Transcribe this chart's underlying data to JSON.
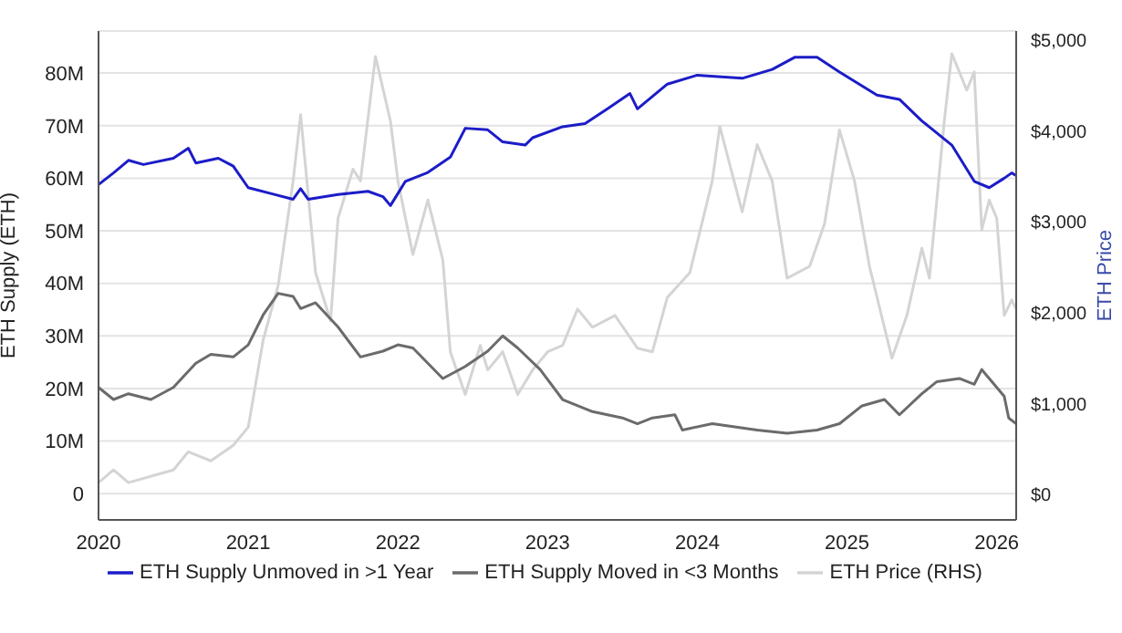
{
  "chart_data": {
    "type": "line",
    "xlabel": null,
    "ylabel": "ETH Supply (ETH)",
    "y2label": "ETH Price",
    "xlim": [
      2020,
      2026.13
    ],
    "xticks": [
      2020,
      2021,
      2022,
      2023,
      2024,
      2025,
      2026
    ],
    "ylim": [
      -5000000,
      88000000
    ],
    "yticks": [
      {
        "value": 0,
        "label": "0"
      },
      {
        "value": 10000000,
        "label": "10M"
      },
      {
        "value": 20000000,
        "label": "20M"
      },
      {
        "value": 30000000,
        "label": "30M"
      },
      {
        "value": 40000000,
        "label": "40M"
      },
      {
        "value": 50000000,
        "label": "50M"
      },
      {
        "value": 60000000,
        "label": "60M"
      },
      {
        "value": 70000000,
        "label": "70M"
      },
      {
        "value": 80000000,
        "label": "80M"
      }
    ],
    "y2lim": [
      -280,
      5100
    ],
    "y2ticks": [
      {
        "value": 0,
        "label": "$0"
      },
      {
        "value": 1000,
        "label": "$1,000"
      },
      {
        "value": 2000,
        "label": "$2,000"
      },
      {
        "value": 3000,
        "label": "$3,000"
      },
      {
        "value": 4000,
        "label": "$4,000"
      },
      {
        "value": 5000,
        "label": "$5,000"
      }
    ],
    "grid": "y",
    "legend": "bottom",
    "series": [
      {
        "name": "ETH Supply Unmoved in >1 Year",
        "color": "#1c1cc8",
        "x": [
          2020.0,
          2020.1,
          2020.2,
          2020.3,
          2020.5,
          2020.6,
          2020.65,
          2020.8,
          2020.9,
          2021.0,
          2021.15,
          2021.3,
          2021.35,
          2021.4,
          2021.6,
          2021.8,
          2021.9,
          2021.95,
          2022.0,
          2022.05,
          2022.2,
          2022.35,
          2022.45,
          2022.6,
          2022.7,
          2022.85,
          2022.9,
          2023.1,
          2023.25,
          2023.4,
          2023.55,
          2023.6,
          2023.8,
          2024.0,
          2024.3,
          2024.5,
          2024.65,
          2024.8,
          2024.95,
          2025.2,
          2025.35,
          2025.5,
          2025.7,
          2025.85,
          2025.95,
          2026.05,
          2026.1,
          2026.13
        ],
        "values": [
          58800000,
          61000000,
          63400000,
          62600000,
          63800000,
          65700000,
          62900000,
          63800000,
          62300000,
          58200000,
          57100000,
          56000000,
          58000000,
          56000000,
          56900000,
          57500000,
          56500000,
          54800000,
          57100000,
          59400000,
          61100000,
          64000000,
          69500000,
          69200000,
          66900000,
          66300000,
          67700000,
          69800000,
          70400000,
          73200000,
          76100000,
          73200000,
          77900000,
          79600000,
          79000000,
          80700000,
          83000000,
          83000000,
          80200000,
          75800000,
          75000000,
          70900000,
          66300000,
          59400000,
          58200000,
          60000000,
          61000000,
          60500000
        ]
      },
      {
        "name": "ETH Supply Moved in <3 Months",
        "color": "#6b6b6b",
        "x": [
          2020.0,
          2020.1,
          2020.2,
          2020.35,
          2020.5,
          2020.65,
          2020.75,
          2020.9,
          2021.0,
          2021.1,
          2021.2,
          2021.3,
          2021.35,
          2021.45,
          2021.6,
          2021.75,
          2021.9,
          2022.0,
          2022.1,
          2022.3,
          2022.45,
          2022.6,
          2022.7,
          2022.8,
          2022.95,
          2023.1,
          2023.3,
          2023.5,
          2023.6,
          2023.7,
          2023.85,
          2023.9,
          2024.1,
          2024.4,
          2024.6,
          2024.8,
          2024.95,
          2025.1,
          2025.25,
          2025.35,
          2025.5,
          2025.6,
          2025.75,
          2025.85,
          2025.9,
          2025.95,
          2026.05,
          2026.08,
          2026.13
        ],
        "values": [
          20200000,
          17900000,
          19000000,
          17900000,
          20200000,
          24800000,
          26500000,
          26000000,
          28300000,
          34000000,
          38100000,
          37500000,
          35200000,
          36300000,
          31700000,
          26000000,
          27100000,
          28300000,
          27700000,
          21900000,
          24200000,
          27100000,
          30000000,
          27700000,
          23600000,
          17900000,
          15600000,
          14400000,
          13300000,
          14400000,
          15000000,
          12100000,
          13300000,
          12100000,
          11500000,
          12100000,
          13300000,
          16700000,
          17900000,
          15000000,
          19000000,
          21300000,
          21900000,
          20800000,
          23600000,
          21900000,
          18500000,
          14400000,
          13300000
        ]
      },
      {
        "name": "ETH Price (RHS)",
        "color": "#d4d4d4",
        "axis": "y2",
        "x": [
          2020.0,
          2020.1,
          2020.2,
          2020.5,
          2020.6,
          2020.75,
          2020.9,
          2021.0,
          2021.1,
          2021.2,
          2021.3,
          2021.35,
          2021.45,
          2021.55,
          2021.6,
          2021.7,
          2021.75,
          2021.85,
          2021.95,
          2022.0,
          2022.1,
          2022.2,
          2022.3,
          2022.35,
          2022.45,
          2022.55,
          2022.6,
          2022.7,
          2022.8,
          2022.9,
          2023.0,
          2023.1,
          2023.2,
          2023.3,
          2023.45,
          2023.6,
          2023.7,
          2023.8,
          2023.95,
          2024.1,
          2024.15,
          2024.3,
          2024.4,
          2024.5,
          2024.6,
          2024.75,
          2024.85,
          2024.95,
          2025.05,
          2025.15,
          2025.3,
          2025.4,
          2025.5,
          2025.55,
          2025.65,
          2025.7,
          2025.8,
          2025.85,
          2025.9,
          2025.95,
          2026.0,
          2026.05,
          2026.1,
          2026.13
        ],
        "values": [
          130,
          270,
          130,
          270,
          470,
          370,
          540,
          740,
          1700,
          2300,
          3450,
          4180,
          2440,
          1910,
          3040,
          3580,
          3450,
          4820,
          4110,
          3450,
          2640,
          3240,
          2580,
          1570,
          1100,
          1640,
          1370,
          1570,
          1100,
          1370,
          1570,
          1640,
          2040,
          1840,
          1970,
          1610,
          1570,
          2170,
          2440,
          3450,
          4050,
          3110,
          3850,
          3450,
          2380,
          2510,
          2980,
          4010,
          3450,
          2510,
          1500,
          1970,
          2710,
          2380,
          4110,
          4850,
          4450,
          4650,
          2910,
          3240,
          3040,
          1970,
          2140,
          2040
        ]
      }
    ]
  }
}
